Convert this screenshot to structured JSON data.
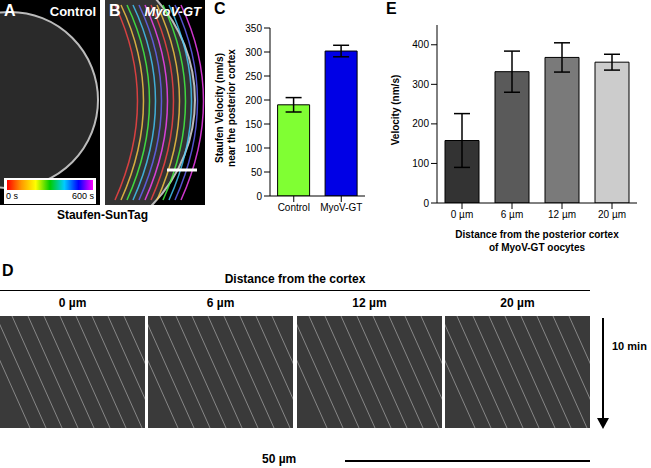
{
  "panels": [
    {
      "panel_label": "A",
      "label": "Control"
    },
    {
      "panel_label": "B",
      "label": "MyoV-GT"
    }
  ],
  "colorbar": {
    "min_label": "0 s",
    "max_label": "600 s",
    "caption": "Staufen-SunTag"
  },
  "kymographs": {
    "panel_label": "D",
    "title": "Distance from the cortex",
    "labels": [
      "0 µm",
      "6 µm",
      "12 µm",
      "20 µm"
    ],
    "time_label": "10 min",
    "scale_label": "50 µm"
  },
  "chart_data": [
    {
      "type": "bar",
      "panel_label": "C",
      "ylabel": [
        "Staufen Velocity (nm/s)",
        "near the posterior cortex"
      ],
      "categories": [
        "Control",
        "MyoV-GT"
      ],
      "values": [
        190,
        302
      ],
      "errors": [
        15,
        12
      ],
      "colors": [
        "#80ff33",
        "#0000e6"
      ],
      "ylim": [
        0,
        350
      ],
      "yticks": [
        0,
        50,
        100,
        150,
        200,
        250,
        300,
        350
      ]
    },
    {
      "type": "bar",
      "panel_label": "E",
      "ylabel": [
        "Velocity (nm/s)"
      ],
      "xlabel": [
        "Distance from the posterior cortex",
        "of MyoV-GT oocytes"
      ],
      "categories": [
        "0 µm",
        "6 µm",
        "12 µm",
        "20 µm"
      ],
      "values": [
        158,
        332,
        368,
        356
      ],
      "errors": [
        68,
        52,
        37,
        20
      ],
      "colors": [
        "#333333",
        "#5a5a5a",
        "#7a7a7a",
        "#cccccc"
      ],
      "ylim": [
        0,
        450
      ],
      "yticks": [
        0,
        100,
        200,
        300,
        400
      ]
    }
  ]
}
